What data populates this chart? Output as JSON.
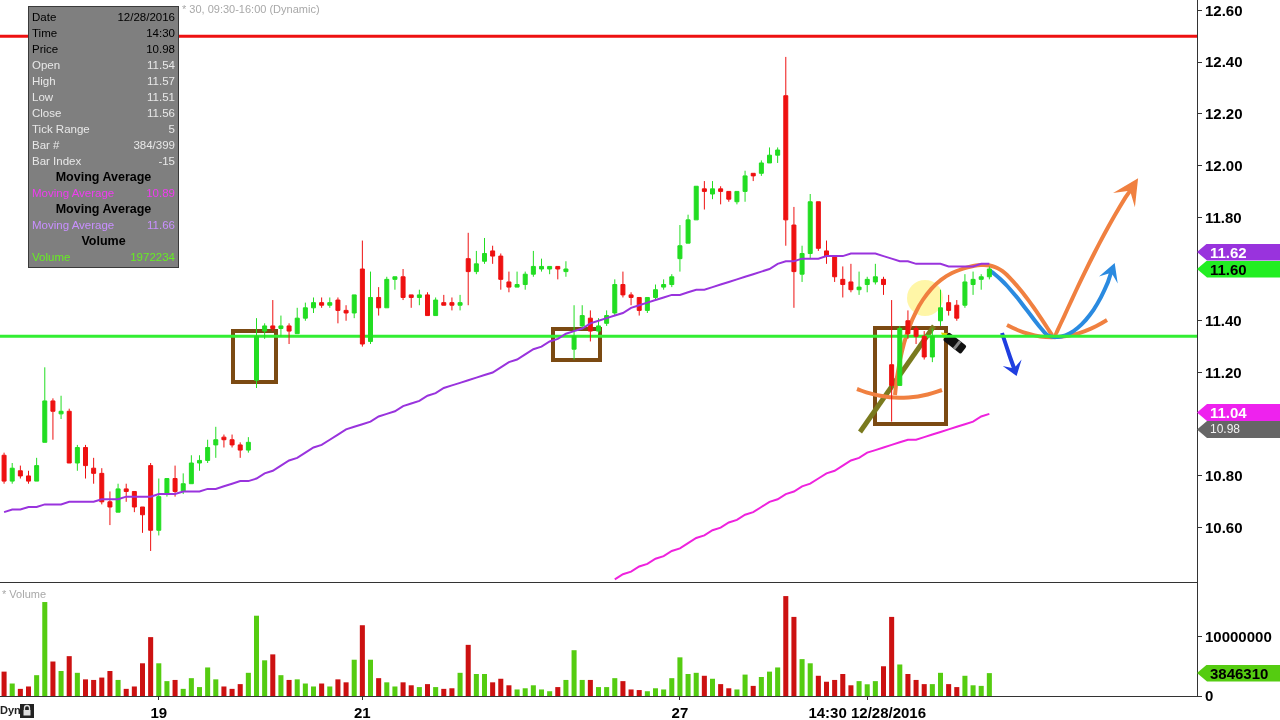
{
  "chart_data": [
    {
      "type": "candlestick",
      "title": "* 30, 09:30-16:00 (Dynamic)",
      "categories": [
        null,
        null,
        null,
        null,
        null,
        null,
        null,
        null,
        null,
        null,
        null,
        null,
        null,
        null,
        null,
        null,
        null,
        null,
        null,
        null,
        null,
        null,
        null,
        null,
        null,
        null,
        null,
        null,
        null,
        null,
        null,
        null,
        null,
        null,
        null,
        null,
        null,
        null,
        null,
        null,
        null,
        null,
        null,
        null,
        null,
        null,
        null,
        null,
        null,
        null,
        null,
        null,
        null,
        null,
        null,
        null,
        null,
        null,
        null,
        null,
        null,
        null,
        null,
        null,
        null,
        null,
        null,
        null,
        null,
        null,
        null,
        null,
        null,
        null,
        null,
        null,
        null,
        null,
        null,
        null,
        null,
        null,
        null,
        null,
        null,
        null,
        null,
        null,
        null,
        null,
        null,
        null,
        null,
        null,
        null,
        null,
        null,
        null,
        null,
        null,
        null,
        null,
        null,
        null,
        null,
        null,
        null,
        null,
        null,
        null,
        null,
        null,
        null,
        null,
        null,
        null,
        null,
        null,
        null,
        null,
        null,
        null,
        null,
        null,
        null,
        null,
        null,
        null,
        null,
        null,
        null,
        null,
        null,
        null,
        null,
        null,
        null,
        null,
        null,
        null,
        null,
        null,
        null,
        null,
        null,
        null,
        null
      ],
      "ohlc": [
        [
          10.88,
          10.89,
          10.77,
          10.78
        ],
        [
          10.78,
          10.85,
          10.77,
          10.83
        ],
        [
          10.82,
          10.84,
          10.79,
          10.8
        ],
        [
          10.8,
          10.82,
          10.77,
          10.78
        ],
        [
          10.78,
          10.87,
          10.78,
          10.84
        ],
        [
          10.93,
          11.22,
          10.93,
          11.09
        ],
        [
          11.09,
          11.1,
          10.94,
          11.05
        ],
        [
          11.04,
          11.11,
          11.02,
          11.05
        ],
        [
          11.05,
          11.06,
          10.85,
          10.85
        ],
        [
          10.85,
          10.92,
          10.82,
          10.91
        ],
        [
          10.91,
          10.92,
          10.79,
          10.84
        ],
        [
          10.83,
          10.87,
          10.77,
          10.81
        ],
        [
          10.81,
          10.83,
          10.69,
          10.7
        ],
        [
          10.7,
          10.74,
          10.61,
          10.68
        ],
        [
          10.66,
          10.77,
          10.66,
          10.75
        ],
        [
          10.75,
          10.77,
          10.7,
          10.74
        ],
        [
          10.74,
          10.74,
          10.66,
          10.68
        ],
        [
          10.68,
          10.68,
          10.58,
          10.65
        ],
        [
          10.84,
          10.85,
          10.51,
          10.59
        ],
        [
          10.59,
          10.79,
          10.57,
          10.72
        ],
        [
          10.73,
          10.79,
          10.72,
          10.79
        ],
        [
          10.79,
          10.84,
          10.72,
          10.74
        ],
        [
          10.74,
          10.81,
          10.73,
          10.77
        ],
        [
          10.77,
          10.88,
          10.77,
          10.85
        ],
        [
          10.85,
          10.88,
          10.82,
          10.86
        ],
        [
          10.86,
          10.94,
          10.85,
          10.91
        ],
        [
          10.92,
          10.99,
          10.87,
          10.94
        ],
        [
          10.95,
          10.96,
          10.91,
          10.94
        ],
        [
          10.94,
          10.96,
          10.91,
          10.92
        ],
        [
          10.92,
          10.93,
          10.87,
          10.9
        ],
        [
          10.9,
          10.95,
          10.89,
          10.93
        ],
        [
          11.17,
          11.41,
          11.14,
          11.34
        ],
        [
          11.36,
          11.39,
          11.33,
          11.38
        ],
        [
          11.38,
          11.48,
          11.36,
          11.37
        ],
        [
          11.37,
          11.42,
          11.34,
          11.38
        ],
        [
          11.38,
          11.39,
          11.31,
          11.36
        ],
        [
          11.35,
          11.45,
          11.35,
          11.41
        ],
        [
          11.41,
          11.47,
          11.4,
          11.45
        ],
        [
          11.45,
          11.49,
          11.43,
          11.47
        ],
        [
          11.47,
          11.49,
          11.45,
          11.46
        ],
        [
          11.46,
          11.49,
          11.45,
          11.47
        ],
        [
          11.48,
          11.49,
          11.39,
          11.44
        ],
        [
          11.44,
          11.46,
          11.4,
          11.43
        ],
        [
          11.43,
          11.5,
          11.41,
          11.5
        ],
        [
          11.6,
          11.71,
          11.3,
          11.31
        ],
        [
          11.32,
          11.59,
          11.31,
          11.49
        ],
        [
          11.49,
          11.53,
          11.42,
          11.45
        ],
        [
          11.45,
          11.57,
          11.45,
          11.56
        ],
        [
          11.56,
          11.57,
          11.52,
          11.57
        ],
        [
          11.57,
          11.6,
          11.48,
          11.49
        ],
        [
          11.5,
          11.5,
          11.45,
          11.49
        ],
        [
          11.49,
          11.52,
          11.46,
          11.5
        ],
        [
          11.5,
          11.51,
          11.42,
          11.42
        ],
        [
          11.42,
          11.49,
          11.42,
          11.48
        ],
        [
          11.47,
          11.5,
          11.46,
          11.46
        ],
        [
          11.47,
          11.49,
          11.44,
          11.46
        ],
        [
          11.46,
          11.5,
          11.44,
          11.47
        ],
        [
          11.64,
          11.74,
          11.46,
          11.59
        ],
        [
          11.59,
          11.67,
          11.58,
          11.62
        ],
        [
          11.63,
          11.72,
          11.62,
          11.66
        ],
        [
          11.67,
          11.69,
          11.62,
          11.65
        ],
        [
          11.65,
          11.66,
          11.52,
          11.56
        ],
        [
          11.55,
          11.59,
          11.51,
          11.53
        ],
        [
          11.53,
          11.59,
          11.53,
          11.54
        ],
        [
          11.54,
          11.59,
          11.52,
          11.58
        ],
        [
          11.58,
          11.67,
          11.57,
          11.61
        ],
        [
          11.6,
          11.64,
          11.59,
          11.61
        ],
        [
          11.6,
          11.61,
          11.58,
          11.61
        ],
        [
          11.61,
          11.61,
          11.56,
          11.6
        ],
        [
          11.59,
          11.63,
          11.57,
          11.6
        ],
        [
          11.29,
          11.46,
          11.25,
          11.34
        ],
        [
          11.38,
          11.46,
          11.37,
          11.42
        ],
        [
          11.41,
          11.44,
          11.32,
          11.36
        ],
        [
          11.36,
          11.41,
          11.35,
          11.38
        ],
        [
          11.39,
          11.44,
          11.38,
          11.42
        ],
        [
          11.43,
          11.56,
          11.42,
          11.54
        ],
        [
          11.54,
          11.59,
          11.49,
          11.5
        ],
        [
          11.5,
          11.51,
          11.46,
          11.49
        ],
        [
          11.49,
          11.49,
          11.42,
          11.44
        ],
        [
          11.44,
          11.49,
          11.43,
          11.49
        ],
        [
          11.49,
          11.54,
          11.48,
          11.52
        ],
        [
          11.53,
          11.56,
          11.52,
          11.54
        ],
        [
          11.54,
          11.58,
          11.53,
          11.57
        ],
        [
          11.64,
          11.77,
          11.59,
          11.69
        ],
        [
          11.7,
          11.81,
          11.7,
          11.79
        ],
        [
          11.79,
          11.92,
          11.79,
          11.92
        ],
        [
          11.91,
          11.94,
          11.83,
          11.9
        ],
        [
          11.89,
          11.94,
          11.87,
          11.91
        ],
        [
          11.91,
          11.92,
          11.85,
          11.9
        ],
        [
          11.9,
          11.9,
          11.86,
          11.87
        ],
        [
          11.86,
          11.9,
          11.85,
          11.9
        ],
        [
          11.9,
          11.98,
          11.86,
          11.96
        ],
        [
          11.97,
          11.97,
          11.94,
          11.96
        ],
        [
          11.97,
          12.02,
          11.96,
          12.01
        ],
        [
          12.01,
          12.07,
          12.01,
          12.04
        ],
        [
          12.04,
          12.07,
          12.01,
          12.06
        ],
        [
          12.27,
          12.42,
          11.69,
          11.79
        ],
        [
          11.77,
          11.84,
          11.45,
          11.59
        ],
        [
          11.58,
          11.69,
          11.55,
          11.66
        ],
        [
          11.66,
          11.89,
          11.64,
          11.86
        ],
        [
          11.86,
          11.86,
          11.67,
          11.68
        ],
        [
          11.67,
          11.71,
          11.62,
          11.65
        ],
        [
          11.65,
          11.65,
          11.55,
          11.57
        ],
        [
          11.56,
          11.61,
          11.49,
          11.54
        ],
        [
          11.55,
          11.62,
          11.51,
          11.52
        ],
        [
          11.52,
          11.59,
          11.5,
          11.53
        ],
        [
          11.54,
          11.57,
          11.51,
          11.56
        ],
        [
          11.55,
          11.62,
          11.54,
          11.57
        ],
        [
          11.56,
          11.57,
          11.5,
          11.54
        ],
        [
          11.23,
          11.48,
          11.01,
          11.15
        ],
        [
          11.15,
          11.38,
          11.15,
          11.37
        ],
        [
          11.4,
          11.44,
          11.33,
          11.35
        ],
        [
          11.37,
          11.38,
          11.31,
          11.34
        ],
        [
          11.34,
          11.36,
          11.25,
          11.26
        ],
        [
          11.26,
          11.37,
          11.24,
          11.34
        ],
        [
          11.4,
          11.52,
          11.38,
          11.45
        ],
        [
          11.47,
          11.5,
          11.42,
          11.44
        ],
        [
          11.46,
          11.48,
          11.4,
          11.41
        ],
        [
          11.46,
          11.58,
          11.45,
          11.55
        ],
        [
          11.54,
          11.59,
          11.5,
          11.56
        ],
        [
          11.56,
          11.58,
          11.52,
          11.57
        ],
        [
          11.57,
          11.61,
          11.56,
          11.6
        ],
        null,
        null,
        null,
        null,
        null,
        null,
        null,
        null,
        null,
        null,
        null,
        null,
        null,
        null,
        null,
        null,
        null,
        null,
        null,
        null,
        null,
        null,
        null,
        null,
        null
      ],
      "colors": [
        "#ee1111",
        "#22dd22",
        "#ee1111",
        "#ee1111",
        "#22dd22",
        "#22dd22",
        "#ee1111",
        "#22dd22",
        "#ee1111",
        "#22dd22",
        "#ee1111",
        "#ee1111",
        "#ee1111",
        "#ee1111",
        "#22dd22",
        "#ee1111",
        "#ee1111",
        "#ee1111",
        "#ee1111",
        "#22dd22",
        "#22dd22",
        "#ee1111",
        "#22dd22",
        "#22dd22",
        "#22dd22",
        "#22dd22",
        "#22dd22",
        "#ee1111",
        "#ee1111",
        "#ee1111",
        "#22dd22",
        "#22dd22",
        "#22dd22",
        "#ee1111",
        "#22dd22",
        "#ee1111",
        "#22dd22",
        "#22dd22",
        "#22dd22",
        "#ee1111",
        "#22dd22",
        "#ee1111",
        "#ee1111",
        "#22dd22",
        "#ee1111",
        "#22dd22",
        "#ee1111",
        "#22dd22",
        "#22dd22",
        "#ee1111",
        "#ee1111",
        "#22dd22",
        "#ee1111",
        "#22dd22",
        "#ee1111",
        "#ee1111",
        "#22dd22",
        "#ee1111",
        "#22dd22",
        "#22dd22",
        "#ee1111",
        "#ee1111",
        "#ee1111",
        "#22dd22",
        "#22dd22",
        "#22dd22",
        "#22dd22",
        "#22dd22",
        "#ee1111",
        "#22dd22",
        "#22dd22",
        "#22dd22",
        "#ee1111",
        "#22dd22",
        "#22dd22",
        "#22dd22",
        "#ee1111",
        "#ee1111",
        "#ee1111",
        "#22dd22",
        "#22dd22",
        "#22dd22",
        "#22dd22",
        "#22dd22",
        "#22dd22",
        "#22dd22",
        "#ee1111",
        "#22dd22",
        "#ee1111",
        "#ee1111",
        "#22dd22",
        "#22dd22",
        "#ee1111",
        "#22dd22",
        "#22dd22",
        "#22dd22",
        "#ee1111",
        "#ee1111",
        "#22dd22",
        "#22dd22",
        "#ee1111",
        "#ee1111",
        "#ee1111",
        "#ee1111",
        "#ee1111",
        "#22dd22",
        "#22dd22",
        "#22dd22",
        "#ee1111",
        "#ee1111",
        "#22dd22",
        "#ee1111",
        "#ee1111",
        "#ee1111",
        "#22dd22",
        "#22dd22",
        "#ee1111",
        "#ee1111",
        "#22dd22",
        "#22dd22",
        "#22dd22",
        "#22dd22",
        null,
        null,
        null,
        null,
        null,
        null,
        null,
        null,
        null,
        null,
        null,
        null,
        null,
        null,
        null,
        null,
        null,
        null,
        null,
        null,
        null,
        null,
        null,
        null,
        null
      ],
      "series": [
        {
          "type": "line",
          "color": "#9933dd",
          "values": [
            10.66,
            10.67,
            10.67,
            10.68,
            10.68,
            10.69,
            10.69,
            10.69,
            10.7,
            10.7,
            10.7,
            10.7,
            10.71,
            10.71,
            10.71,
            10.72,
            10.72,
            10.72,
            10.72,
            10.73,
            10.73,
            10.73,
            10.74,
            10.74,
            10.74,
            10.75,
            10.75,
            10.76,
            10.77,
            10.78,
            10.78,
            10.79,
            10.81,
            10.82,
            10.84,
            10.86,
            10.87,
            10.89,
            10.91,
            10.92,
            10.94,
            10.96,
            10.98,
            10.99,
            11.0,
            11.01,
            11.03,
            11.04,
            11.05,
            11.07,
            11.08,
            11.09,
            11.11,
            11.12,
            11.14,
            11.15,
            11.16,
            11.17,
            11.18,
            11.19,
            11.2,
            11.22,
            11.24,
            11.25,
            11.27,
            11.29,
            11.3,
            11.32,
            11.33,
            11.35,
            11.36,
            11.37,
            11.39,
            11.4,
            11.41,
            11.42,
            11.43,
            11.45,
            11.46,
            11.47,
            11.48,
            11.49,
            11.5,
            11.5,
            11.51,
            11.52,
            11.52,
            11.53,
            11.54,
            11.55,
            11.56,
            11.57,
            11.58,
            11.59,
            11.6,
            11.62,
            11.63,
            11.63,
            11.64,
            11.64,
            11.64,
            11.65,
            11.65,
            11.65,
            11.66,
            11.66,
            11.66,
            11.66,
            11.65,
            11.64,
            11.63,
            11.63,
            11.62,
            11.62,
            11.62,
            11.62,
            11.61,
            11.61,
            11.61,
            11.61,
            11.62,
            11.62,
            null,
            null,
            null,
            null,
            null,
            null,
            null,
            null,
            null,
            null,
            null,
            null,
            null,
            null,
            null,
            null,
            null,
            null,
            null,
            null,
            null,
            null,
            null,
            null,
            null
          ]
        },
        {
          "type": "line",
          "color": "#ee22dd",
          "values": [
            null,
            null,
            null,
            null,
            null,
            null,
            null,
            null,
            null,
            null,
            null,
            null,
            null,
            null,
            null,
            null,
            null,
            null,
            null,
            null,
            null,
            null,
            null,
            null,
            null,
            null,
            null,
            null,
            null,
            null,
            null,
            null,
            null,
            null,
            null,
            null,
            null,
            null,
            null,
            null,
            null,
            null,
            null,
            null,
            null,
            null,
            null,
            null,
            null,
            null,
            null,
            null,
            null,
            null,
            null,
            null,
            null,
            null,
            null,
            null,
            null,
            null,
            null,
            null,
            null,
            null,
            null,
            null,
            null,
            null,
            null,
            null,
            null,
            null,
            null,
            10.4,
            10.42,
            10.43,
            10.45,
            10.46,
            10.48,
            10.49,
            10.51,
            10.52,
            10.54,
            10.56,
            10.57,
            10.59,
            10.6,
            10.62,
            10.63,
            10.65,
            10.66,
            10.68,
            10.7,
            10.71,
            10.73,
            10.74,
            10.76,
            10.77,
            10.79,
            10.81,
            10.82,
            10.84,
            10.86,
            10.87,
            10.89,
            10.9,
            10.91,
            10.92,
            10.93,
            10.94,
            10.94,
            10.95,
            10.96,
            10.97,
            10.98,
            10.99,
            11.0,
            11.01,
            11.03,
            11.04,
            null,
            null,
            null,
            null,
            null,
            null,
            null,
            null,
            null,
            null,
            null,
            null,
            null,
            null,
            null,
            null,
            null,
            null,
            null,
            null,
            null,
            null,
            null,
            null,
            null
          ]
        }
      ],
      "ylim": [
        10.39,
        12.64
      ],
      "yticks": [
        {
          "value": 10.6,
          "label": "10.60"
        },
        {
          "value": 10.8,
          "label": "10.80"
        },
        {
          "value": 11.2,
          "label": "11.20"
        },
        {
          "value": 11.4,
          "label": "11.40"
        },
        {
          "value": 11.8,
          "label": "11.80"
        },
        {
          "value": 12.0,
          "label": "12.00"
        },
        {
          "value": 12.2,
          "label": "12.20"
        },
        {
          "value": 12.4,
          "label": "12.40"
        },
        {
          "value": 12.6,
          "label": "12.60"
        }
      ],
      "ref_lines": [
        {
          "axis": "y",
          "value": 12.5,
          "color": "#ee1111"
        },
        {
          "axis": "y",
          "value": 11.34,
          "color": "#33ee33"
        }
      ],
      "annotations": [
        "11.62",
        "11.60",
        "11.04",
        "10.98"
      ]
    },
    {
      "type": "bar",
      "title": "* Volume",
      "categories": [
        null,
        null,
        null,
        null,
        null,
        null,
        null,
        null,
        null,
        null,
        null,
        null,
        null,
        null,
        null,
        null,
        null,
        null,
        null,
        "19",
        null,
        null,
        null,
        null,
        null,
        null,
        null,
        null,
        null,
        null,
        null,
        null,
        null,
        null,
        null,
        null,
        null,
        null,
        null,
        null,
        null,
        null,
        null,
        null,
        "21",
        null,
        null,
        null,
        null,
        null,
        null,
        null,
        null,
        null,
        null,
        null,
        null,
        null,
        null,
        null,
        null,
        null,
        null,
        null,
        null,
        null,
        null,
        null,
        null,
        null,
        null,
        null,
        null,
        null,
        null,
        null,
        null,
        null,
        null,
        null,
        null,
        null,
        null,
        "27",
        null,
        null,
        null,
        null,
        null,
        null,
        null,
        null,
        null,
        null,
        null,
        null,
        null,
        null,
        null,
        null,
        null,
        null,
        null,
        null,
        null,
        null,
        "14:30 12/28/2016",
        null,
        null,
        null,
        null,
        null,
        null,
        null,
        null,
        null,
        null,
        null,
        null,
        null,
        null,
        null,
        null,
        null,
        null,
        null,
        null,
        null,
        null,
        null,
        null,
        null,
        null,
        null,
        null,
        null,
        null,
        null,
        null,
        null,
        null,
        null,
        null,
        null,
        null,
        null,
        null
      ],
      "values": [
        4100000,
        2100000,
        1200000,
        1600000,
        3500000,
        15800000,
        5800000,
        4200000,
        6700000,
        3900000,
        2800000,
        2700000,
        3100000,
        4200000,
        2700000,
        1200000,
        1600000,
        5500000,
        9900000,
        5500000,
        2500000,
        2700000,
        1200000,
        3000000,
        1500000,
        4800000,
        2800000,
        1600000,
        1200000,
        2000000,
        3900000,
        13500000,
        6000000,
        7000000,
        3500000,
        2700000,
        2800000,
        2100000,
        1600000,
        2100000,
        1600000,
        2800000,
        2300000,
        6100000,
        11900000,
        6100000,
        3000000,
        2300000,
        1600000,
        2300000,
        1800000,
        1500000,
        2000000,
        1500000,
        1200000,
        1300000,
        3900000,
        8600000,
        3700000,
        3700000,
        2300000,
        2900000,
        1800000,
        1100000,
        1300000,
        1800000,
        1100000,
        800000,
        1500000,
        2700000,
        7700000,
        2700000,
        2700000,
        1500000,
        1500000,
        3000000,
        2500000,
        1100000,
        1000000,
        800000,
        1300000,
        1100000,
        3000000,
        6500000,
        3700000,
        3900000,
        3400000,
        2900000,
        2000000,
        1300000,
        1100000,
        3600000,
        1700000,
        3200000,
        4100000,
        4800000,
        16800000,
        13300000,
        6200000,
        5500000,
        3400000,
        2400000,
        2700000,
        3700000,
        1800000,
        2500000,
        1972234,
        2500000,
        5000000,
        13300000,
        5300000,
        3700000,
        2700000,
        2000000,
        2000000,
        3900000,
        2000000,
        1500000,
        3400000,
        1800000,
        1700000,
        3846310,
        null,
        null,
        null,
        null,
        null,
        null,
        null,
        null,
        null,
        null,
        null,
        null,
        null,
        null,
        null,
        null,
        null,
        null,
        null,
        null,
        null,
        null,
        null,
        null,
        null
      ],
      "colors": [
        "#cc1111",
        "#55cc11",
        "#cc1111",
        "#cc1111",
        "#55cc11",
        "#55cc11",
        "#cc1111",
        "#55cc11",
        "#cc1111",
        "#55cc11",
        "#cc1111",
        "#cc1111",
        "#cc1111",
        "#cc1111",
        "#55cc11",
        "#cc1111",
        "#cc1111",
        "#cc1111",
        "#cc1111",
        "#55cc11",
        "#55cc11",
        "#cc1111",
        "#55cc11",
        "#55cc11",
        "#55cc11",
        "#55cc11",
        "#55cc11",
        "#cc1111",
        "#cc1111",
        "#cc1111",
        "#55cc11",
        "#55cc11",
        "#55cc11",
        "#cc1111",
        "#55cc11",
        "#cc1111",
        "#55cc11",
        "#55cc11",
        "#55cc11",
        "#cc1111",
        "#55cc11",
        "#cc1111",
        "#cc1111",
        "#55cc11",
        "#cc1111",
        "#55cc11",
        "#cc1111",
        "#55cc11",
        "#55cc11",
        "#cc1111",
        "#cc1111",
        "#55cc11",
        "#cc1111",
        "#55cc11",
        "#cc1111",
        "#cc1111",
        "#55cc11",
        "#cc1111",
        "#55cc11",
        "#55cc11",
        "#cc1111",
        "#cc1111",
        "#cc1111",
        "#55cc11",
        "#55cc11",
        "#55cc11",
        "#55cc11",
        "#55cc11",
        "#cc1111",
        "#55cc11",
        "#55cc11",
        "#55cc11",
        "#cc1111",
        "#55cc11",
        "#55cc11",
        "#55cc11",
        "#cc1111",
        "#cc1111",
        "#cc1111",
        "#55cc11",
        "#55cc11",
        "#55cc11",
        "#55cc11",
        "#55cc11",
        "#55cc11",
        "#55cc11",
        "#cc1111",
        "#55cc11",
        "#cc1111",
        "#cc1111",
        "#55cc11",
        "#55cc11",
        "#cc1111",
        "#55cc11",
        "#55cc11",
        "#55cc11",
        "#cc1111",
        "#cc1111",
        "#55cc11",
        "#55cc11",
        "#cc1111",
        "#cc1111",
        "#cc1111",
        "#cc1111",
        "#cc1111",
        "#55cc11",
        "#55cc11",
        "#55cc11",
        "#cc1111",
        "#cc1111",
        "#55cc11",
        "#cc1111",
        "#cc1111",
        "#cc1111",
        "#55cc11",
        "#55cc11",
        "#cc1111",
        "#cc1111",
        "#55cc11",
        "#55cc11",
        "#55cc11",
        "#55cc11",
        null,
        null,
        null,
        null,
        null,
        null,
        null,
        null,
        null,
        null,
        null,
        null,
        null,
        null,
        null,
        null,
        null,
        null,
        null,
        null,
        null,
        null,
        null,
        null,
        null
      ],
      "ylim": [
        0,
        19000000
      ],
      "yticks": [
        {
          "value": 0,
          "label": "0"
        },
        {
          "value": 10000000,
          "label": "10000000"
        }
      ],
      "annotations": [
        "3846310",
        "Dyn"
      ]
    },
    {
      "type": "other",
      "annotations": [
        "Date 12/28/2016",
        "Time 14:30",
        "Price 10.98",
        "Open 11.54",
        "High 11.57",
        "Low 11.51",
        "Close 11.56",
        "Tick Range 5",
        "Bar # 384/399",
        "Bar Index -15",
        "Moving Average",
        "Moving Average 10.89",
        "Moving Average",
        "Moving Average 11.66",
        "Volume",
        "Volume 1972234"
      ]
    }
  ]
}
